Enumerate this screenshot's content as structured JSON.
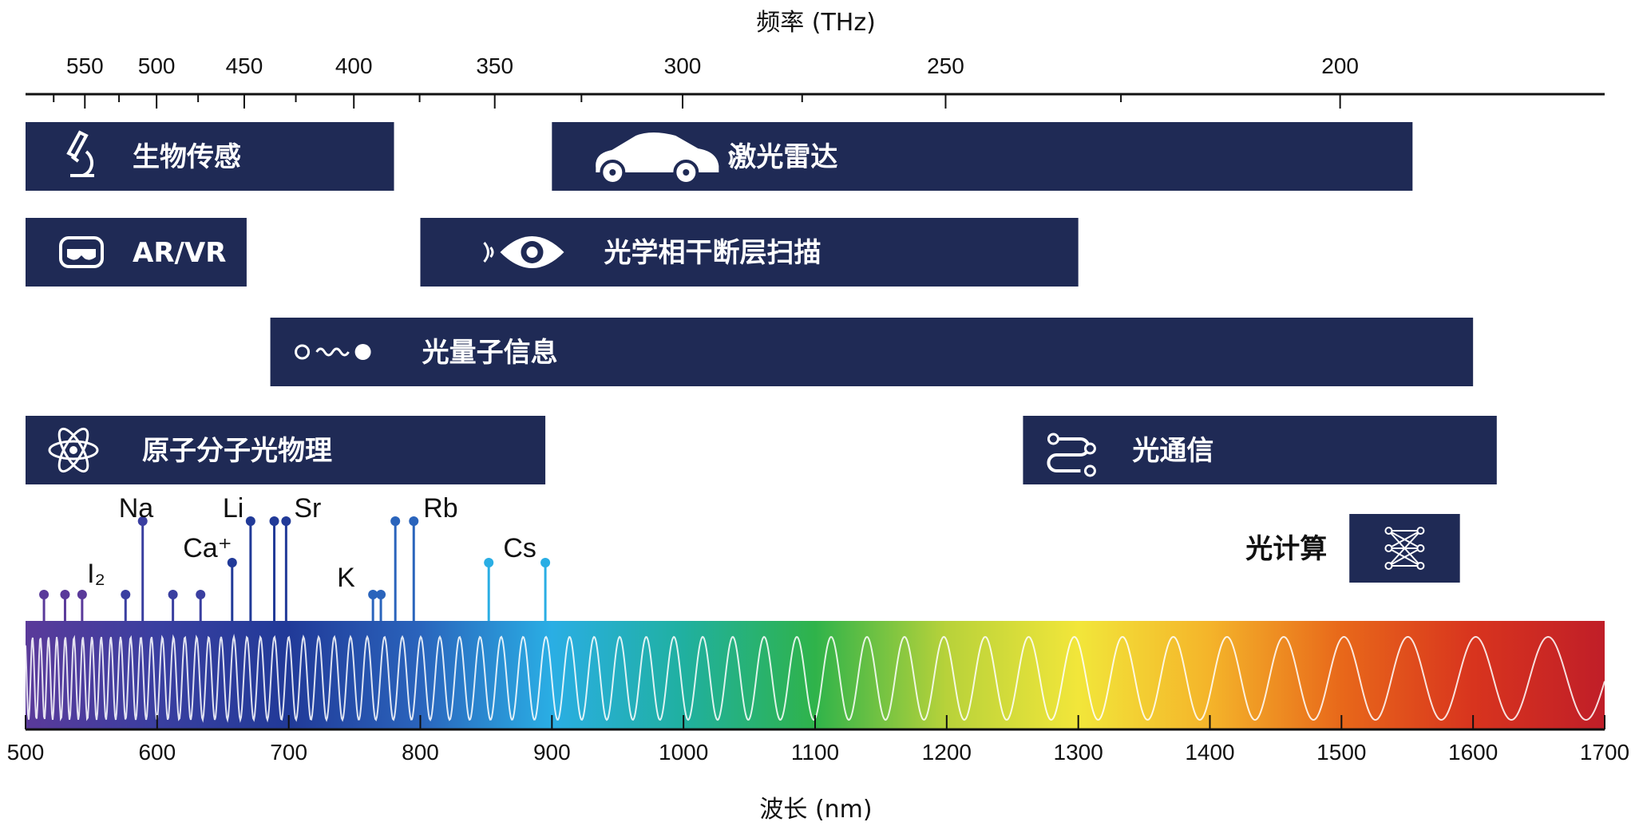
{
  "chart_data": {
    "type": "spectrum-diagram",
    "x_axis": {
      "label": "波长 (nm)",
      "range": [
        500,
        1700
      ],
      "ticks": [
        500,
        600,
        700,
        800,
        900,
        1000,
        1100,
        1200,
        1300,
        1400,
        1500,
        1600,
        1700
      ]
    },
    "top_axis": {
      "label": "频率 (THz)",
      "major_ticks": [
        550,
        500,
        450,
        400,
        350,
        300,
        250,
        200
      ],
      "minor_ticks": [
        575,
        525,
        475,
        425,
        375,
        325,
        275,
        225
      ]
    },
    "applications": [
      {
        "label": "生物传感",
        "icon": "microscope-icon",
        "range_nm": [
          500,
          780
        ]
      },
      {
        "label": "激光雷达",
        "icon": "car-lidar-icon",
        "range_nm": [
          900,
          1554
        ]
      },
      {
        "label": "AR/VR",
        "icon": "vr-headset-icon",
        "range_nm": [
          500,
          668
        ]
      },
      {
        "label": "光学相干断层扫描",
        "icon": "eye-scan-icon",
        "range_nm": [
          800,
          1300
        ]
      },
      {
        "label": "光量子信息",
        "icon": "photon-icon",
        "range_nm": [
          686,
          1600
        ]
      },
      {
        "label": "原子分子光物理",
        "icon": "atom-icon",
        "range_nm": [
          500,
          895
        ]
      },
      {
        "label": "光通信",
        "icon": "network-icon",
        "range_nm": [
          1258,
          1618
        ]
      },
      {
        "label": "光计算",
        "icon": "neural-network-icon",
        "range_nm": [
          1506,
          1590
        ]
      }
    ],
    "atomic_lines": [
      {
        "nm": 514,
        "level": "short"
      },
      {
        "nm": 530,
        "level": "short"
      },
      {
        "nm": 543,
        "level": "short"
      },
      {
        "nm": 576,
        "level": "short"
      },
      {
        "nm": 589,
        "level": "tall"
      },
      {
        "nm": 612,
        "level": "short"
      },
      {
        "nm": 633,
        "level": "short"
      },
      {
        "nm": 657,
        "level": "mid"
      },
      {
        "nm": 671,
        "level": "tall"
      },
      {
        "nm": 689,
        "level": "tall"
      },
      {
        "nm": 698,
        "level": "tall"
      },
      {
        "nm": 764,
        "level": "short"
      },
      {
        "nm": 770,
        "level": "short"
      },
      {
        "nm": 781,
        "level": "tall"
      },
      {
        "nm": 795,
        "level": "tall"
      },
      {
        "nm": 852,
        "level": "mid"
      },
      {
        "nm": 895,
        "level": "mid"
      }
    ],
    "element_labels": [
      {
        "text": "Na",
        "nm": 589
      },
      {
        "text": "I₂",
        "nm": 565
      },
      {
        "text": "Li",
        "nm": 671
      },
      {
        "text": "Ca⁺",
        "nm": 650
      },
      {
        "text": "Sr",
        "nm": 698
      },
      {
        "text": "K",
        "nm": 764
      },
      {
        "text": "Rb",
        "nm": 795
      },
      {
        "text": "Cs",
        "nm": 880
      }
    ],
    "colors": {
      "bar": "#1f2a55",
      "spectrum": [
        "#5a3a9a",
        "#3a3fa0",
        "#213a98",
        "#2a64bc",
        "#2aaee4",
        "#20b0a0",
        "#2fb34a",
        "#b8d23a",
        "#f2e63a",
        "#f4b42a",
        "#e8681a",
        "#d8341e",
        "#c01e28"
      ]
    }
  }
}
